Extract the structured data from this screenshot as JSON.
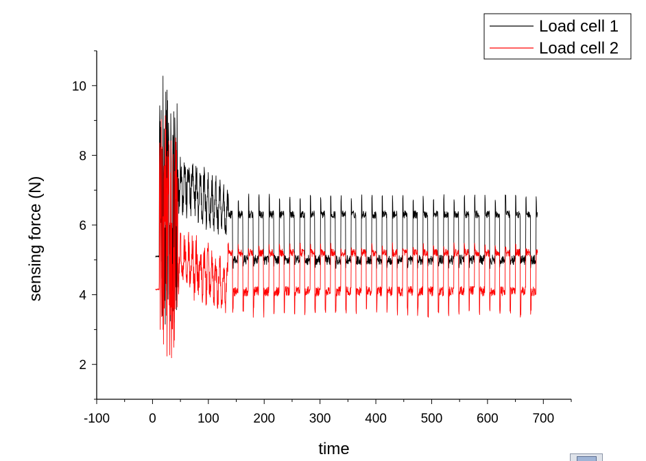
{
  "chart_data": {
    "type": "line",
    "title": "",
    "xlabel": "time",
    "ylabel": "sensing force (N)",
    "xlim": [
      -100,
      750
    ],
    "ylim": [
      1,
      11
    ],
    "xticks": [
      -100,
      0,
      100,
      200,
      300,
      400,
      500,
      600,
      700
    ],
    "yticks": [
      2,
      4,
      6,
      8,
      10
    ],
    "grid": false,
    "legend": "top-right",
    "series": [
      {
        "name": "Load cell 1",
        "color": "#000000",
        "initial_value": 5.1,
        "initial_time_range": [
          5,
          12
        ],
        "transient_peak": 10.4,
        "transient_min": 2.6,
        "settled_high_value": 6.3,
        "settled_high_peak": 6.9,
        "settled_low_value": 5.0,
        "settled_low_min": 4.75,
        "cycle_period": 18.4,
        "settled_from": 135,
        "end_time": 690
      },
      {
        "name": "Load cell 2",
        "color": "#ff0000",
        "initial_value": 4.15,
        "initial_time_range": [
          5,
          12
        ],
        "transient_peak": 9.3,
        "transient_min": 2.0,
        "settled_high_value": 5.2,
        "settled_high_peak": 5.5,
        "settled_low_value": 4.1,
        "settled_low_min": 3.35,
        "cycle_period": 18.4,
        "settled_from": 135,
        "end_time": 690
      }
    ]
  }
}
